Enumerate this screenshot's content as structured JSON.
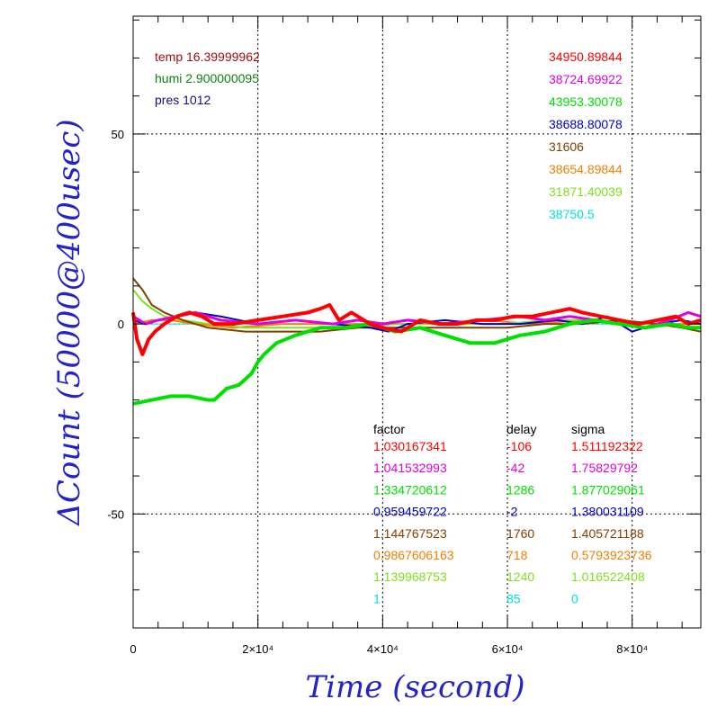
{
  "chart_data": {
    "type": "line",
    "title": "",
    "xlabel": "Time (second)",
    "ylabel": "ΔCount (50000@400usec)",
    "xlim": [
      0,
      91000
    ],
    "ylim": [
      -80,
      81
    ],
    "grid": true,
    "x_ticks": [
      {
        "value": 0,
        "label": "0"
      },
      {
        "value": 20000,
        "label": "2×10⁴"
      },
      {
        "value": 40000,
        "label": "4×10⁴"
      },
      {
        "value": 60000,
        "label": "6×10⁴"
      },
      {
        "value": 80000,
        "label": "8×10⁴"
      }
    ],
    "y_ticks": [
      {
        "value": 50,
        "label": "50"
      },
      {
        "value": 0,
        "label": "0"
      },
      {
        "value": -50,
        "label": "-50"
      }
    ],
    "conditions": [
      {
        "text": "temp 16.39999962",
        "color": "#a01010"
      },
      {
        "text": "humi 2.900000095",
        "color": "#108010"
      },
      {
        "text": "pres 1012",
        "color": "#101080"
      }
    ],
    "table_headers": [
      "factor",
      "delay",
      "sigma"
    ],
    "series": [
      {
        "color": "#ff0000",
        "label": "34950.89844",
        "factor": "1.030167341",
        "delay": "-106",
        "sigma": "1.511192322",
        "x": [
          0,
          600,
          1500,
          2500,
          3500,
          5000,
          7000,
          9000,
          11000,
          13000,
          16000,
          20000,
          24000,
          28000,
          30000,
          31500,
          33000,
          35000,
          38000,
          40000,
          43000,
          46000,
          49000,
          52000,
          55000,
          58000,
          61000,
          64000,
          67000,
          70000,
          72000,
          75000,
          78000,
          81000,
          84000,
          87000,
          89000,
          91000
        ],
        "y": [
          3,
          -4,
          -8,
          -4,
          -2,
          0,
          2,
          3,
          2,
          0,
          0,
          1,
          2,
          3,
          4,
          5,
          1,
          3,
          0,
          -1,
          -2,
          1,
          0,
          0,
          1,
          1,
          2,
          2,
          3,
          4,
          3,
          2,
          1,
          0,
          1,
          2,
          0,
          1
        ]
      },
      {
        "color": "#e000e0",
        "label": "38724.69922",
        "factor": "1.041532993",
        "delay": "-42",
        "sigma": "1.75829792",
        "x": [
          0,
          2000,
          4000,
          7000,
          10000,
          14000,
          20000,
          26000,
          32000,
          36000,
          40000,
          44000,
          50000,
          56000,
          62000,
          66000,
          70000,
          74000,
          78000,
          82000,
          86000,
          89000,
          91000
        ],
        "y": [
          2,
          0,
          1,
          2,
          3,
          1,
          0,
          1,
          0,
          1,
          0,
          1,
          0,
          1,
          2,
          1,
          2,
          1,
          0,
          -1,
          1,
          3,
          2
        ]
      },
      {
        "color": "#00e000",
        "label": "43953.30078",
        "factor": "1.334720612",
        "delay": "1286",
        "sigma": "1.877029061",
        "x": [
          0,
          3000,
          6000,
          9000,
          12000,
          13000,
          15000,
          17000,
          19000,
          20000,
          21000,
          23000,
          26000,
          30000,
          34000,
          38000,
          42000,
          46000,
          50000,
          54000,
          58000,
          62000,
          66000,
          70000,
          74000,
          78000,
          82000,
          86000,
          89000,
          91000
        ],
        "y": [
          -21,
          -20,
          -19,
          -19,
          -20,
          -20,
          -17,
          -16,
          -13,
          -10,
          -8,
          -5,
          -3,
          -1,
          -1,
          0,
          -2,
          -1,
          -3,
          -5,
          -5,
          -3,
          -2,
          0,
          1,
          0,
          -1,
          0,
          -1,
          -1
        ]
      },
      {
        "color": "#0000c8",
        "label": "38688.80078",
        "factor": "0.959459722",
        "delay": "-2",
        "sigma": "1.380031109",
        "x": [
          0,
          2000,
          4000,
          7000,
          10000,
          14000,
          20000,
          26000,
          32000,
          38000,
          41000,
          44000,
          50000,
          56000,
          62000,
          68000,
          72000,
          76000,
          80000,
          84000,
          88000,
          91000
        ],
        "y": [
          1,
          0,
          1,
          2,
          3,
          2,
          0,
          1,
          0,
          -1,
          -2,
          0,
          1,
          0,
          0,
          1,
          0,
          2,
          -2,
          0,
          1,
          0
        ]
      },
      {
        "color": "#804000",
        "label": "31606",
        "factor": "1.144767523",
        "delay": "1760",
        "sigma": "1.405721188",
        "x": [
          0,
          1500,
          3000,
          5000,
          8000,
          12000,
          18000,
          24000,
          30000,
          36000,
          42000,
          48000,
          54000,
          60000,
          66000,
          72000,
          78000,
          84000,
          88000,
          91000
        ],
        "y": [
          12,
          9,
          5,
          3,
          1,
          -1,
          -2,
          -2,
          -2,
          -1,
          -1,
          -1,
          -1,
          -1,
          0,
          0,
          1,
          0,
          -1,
          -2
        ]
      },
      {
        "color": "#f08000",
        "label": "38654.89844",
        "factor": "0.9867606163",
        "delay": "718",
        "sigma": "0.5793923736",
        "x": [
          0,
          3000,
          6000,
          10000,
          16000,
          24000,
          32000,
          40000,
          48000,
          56000,
          64000,
          72000,
          80000,
          88000,
          91000
        ],
        "y": [
          0,
          1,
          1,
          0,
          -1,
          0,
          0,
          0,
          0,
          1,
          0,
          1,
          0,
          0,
          0
        ]
      },
      {
        "color": "#80e020",
        "label": "31871.40039",
        "factor": "1.139968753",
        "delay": "1240",
        "sigma": "1.016522408",
        "x": [
          0,
          1500,
          3000,
          5000,
          8000,
          12000,
          18000,
          24000,
          30000,
          36000,
          42000,
          48000,
          54000,
          60000,
          66000,
          72000,
          78000,
          84000,
          88000,
          91000
        ],
        "y": [
          9,
          6,
          4,
          2,
          1,
          0,
          -1,
          -1,
          -1,
          -1,
          0,
          0,
          0,
          0,
          1,
          1,
          0,
          0,
          -1,
          -1
        ]
      },
      {
        "color": "#00e0e0",
        "label": "38750.5",
        "factor": "1",
        "delay": "85",
        "sigma": "0",
        "x": [
          0,
          91000
        ],
        "y": [
          0,
          0
        ]
      }
    ]
  }
}
